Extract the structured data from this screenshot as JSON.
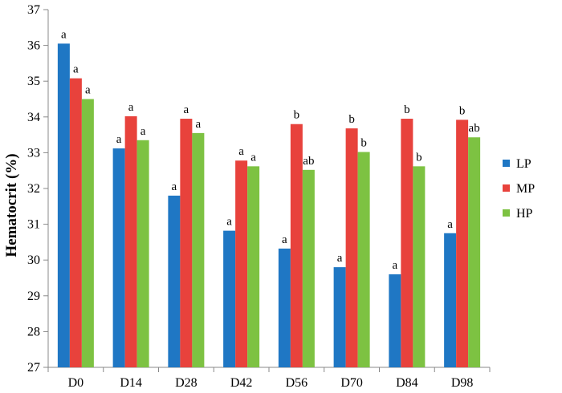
{
  "chart_data": {
    "type": "bar",
    "title": "",
    "xlabel": "",
    "ylabel": "Hematocrit (%)",
    "ylim": [
      27,
      37
    ],
    "yticks": [
      27,
      28,
      29,
      30,
      31,
      32,
      33,
      34,
      35,
      36,
      37
    ],
    "grid": false,
    "legend_position": "right",
    "categories": [
      "D0",
      "D14",
      "D28",
      "D42",
      "D56",
      "D70",
      "D84",
      "D98"
    ],
    "series": [
      {
        "name": "LP",
        "color": "#1f77c4",
        "values": [
          36.05,
          33.12,
          31.8,
          30.82,
          30.32,
          29.8,
          29.6,
          30.75
        ],
        "labels": [
          "a",
          "a",
          "a",
          "a",
          "a",
          "a",
          "a",
          "a"
        ]
      },
      {
        "name": "MP",
        "color": "#e8423c",
        "values": [
          35.08,
          34.02,
          33.95,
          32.78,
          33.8,
          33.68,
          33.95,
          33.92
        ],
        "labels": [
          "a",
          "a",
          "a",
          "a",
          "b",
          "b",
          "b",
          "b"
        ]
      },
      {
        "name": "HP",
        "color": "#7dc242",
        "values": [
          34.5,
          33.35,
          33.55,
          32.62,
          32.52,
          33.02,
          32.62,
          33.43
        ],
        "labels": [
          "a",
          "a",
          "a",
          "a",
          "ab",
          "b",
          "b",
          "ab"
        ]
      }
    ]
  }
}
